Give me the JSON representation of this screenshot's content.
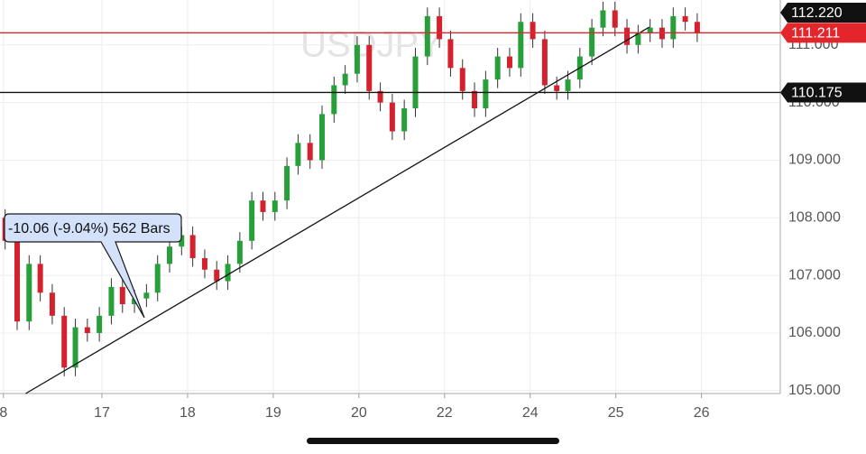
{
  "chart_data": {
    "type": "candlestick",
    "watermark": "USDJPY",
    "annotation": "-10.06 (-9.04%) 562 Bars",
    "xlim": [
      -0.19,
      8.92
    ],
    "xticks": [
      {
        "value": -0.15,
        "label": "8"
      },
      {
        "value": 1,
        "label": "17"
      },
      {
        "value": 2,
        "label": "18"
      },
      {
        "value": 3,
        "label": "19"
      },
      {
        "value": 4,
        "label": "20"
      },
      {
        "value": 5,
        "label": "22"
      },
      {
        "value": 6,
        "label": "24"
      },
      {
        "value": 7,
        "label": "25"
      },
      {
        "value": 8,
        "label": "26"
      }
    ],
    "ylim": [
      104.95,
      111.78
    ],
    "yticks": [
      {
        "value": 105,
        "label": "105.000"
      },
      {
        "value": 106,
        "label": "106.000"
      },
      {
        "value": 107,
        "label": "107.000"
      },
      {
        "value": 108,
        "label": "108.000"
      },
      {
        "value": 109,
        "label": "109.000"
      },
      {
        "value": 110,
        "label": "110.000"
      },
      {
        "value": 111,
        "label": "111.000"
      }
    ],
    "grid": true,
    "up_color": "#27a03a",
    "down_color": "#d4212d",
    "x": [
      -0.13,
      0.01,
      0.15,
      0.28,
      0.42,
      0.56,
      0.69,
      0.83,
      0.97,
      1.11,
      1.24,
      1.38,
      1.52,
      1.65,
      1.79,
      1.93,
      2.06,
      2.2,
      2.34,
      2.47,
      2.61,
      2.75,
      2.88,
      3.02,
      3.16,
      3.29,
      3.43,
      3.57,
      3.71,
      3.84,
      3.98,
      4.12,
      4.25,
      4.39,
      4.53,
      4.66,
      4.8,
      4.94,
      5.07,
      5.21,
      5.35,
      5.48,
      5.62,
      5.76,
      5.89,
      6.03,
      6.17,
      6.31,
      6.44,
      6.58,
      6.72,
      6.85,
      6.99,
      7.13,
      7.26,
      7.4,
      7.54,
      7.67,
      7.81,
      7.95
    ],
    "open": [
      108.0,
      107.6,
      106.2,
      107.2,
      106.7,
      106.3,
      105.4,
      106.1,
      106.0,
      106.3,
      106.8,
      106.5,
      106.6,
      106.7,
      107.2,
      107.5,
      107.7,
      107.3,
      107.1,
      106.9,
      107.2,
      107.6,
      108.3,
      108.1,
      108.3,
      108.9,
      109.3,
      109.0,
      109.8,
      110.3,
      110.5,
      111.0,
      110.2,
      110.0,
      109.5,
      109.9,
      110.8,
      111.5,
      111.1,
      110.6,
      110.2,
      109.9,
      110.4,
      110.8,
      110.6,
      111.4,
      111.1,
      110.3,
      110.2,
      110.4,
      110.8,
      111.3,
      111.6,
      111.3,
      111.0,
      111.2,
      111.3,
      111.1,
      111.5,
      111.4
    ],
    "high": [
      108.15,
      107.75,
      107.35,
      107.35,
      106.85,
      106.45,
      106.25,
      106.25,
      106.45,
      106.95,
      106.95,
      106.75,
      106.85,
      107.35,
      107.65,
      107.85,
      107.85,
      107.45,
      107.25,
      107.35,
      107.75,
      108.45,
      108.45,
      108.45,
      109.05,
      109.45,
      109.45,
      109.95,
      110.45,
      110.65,
      111.15,
      111.15,
      110.35,
      110.15,
      110.05,
      110.95,
      111.65,
      111.65,
      111.25,
      110.75,
      110.35,
      110.55,
      110.95,
      110.95,
      111.55,
      111.55,
      111.25,
      110.45,
      110.55,
      110.95,
      111.45,
      111.75,
      111.75,
      111.45,
      111.35,
      111.45,
      111.45,
      111.65,
      111.65,
      111.55
    ],
    "low": [
      107.45,
      106.05,
      106.05,
      106.55,
      106.15,
      105.25,
      105.25,
      105.85,
      105.85,
      106.15,
      106.35,
      106.35,
      106.45,
      106.55,
      107.05,
      107.35,
      107.15,
      106.95,
      106.75,
      106.75,
      107.05,
      107.45,
      107.95,
      107.95,
      108.15,
      108.75,
      108.85,
      108.85,
      109.65,
      110.15,
      110.35,
      110.05,
      109.85,
      109.35,
      109.35,
      109.75,
      110.65,
      110.95,
      110.45,
      110.05,
      109.75,
      109.75,
      110.25,
      110.45,
      110.45,
      110.95,
      110.15,
      110.05,
      110.05,
      110.25,
      110.65,
      111.15,
      111.15,
      110.85,
      110.85,
      111.05,
      110.95,
      110.95,
      111.25,
      111.05
    ],
    "close": [
      107.6,
      106.2,
      107.2,
      106.7,
      106.3,
      105.4,
      106.1,
      106.0,
      106.3,
      106.8,
      106.5,
      106.6,
      106.7,
      107.2,
      107.5,
      107.7,
      107.3,
      107.1,
      106.9,
      107.2,
      107.6,
      108.3,
      108.1,
      108.3,
      108.9,
      109.3,
      109.0,
      109.8,
      110.3,
      110.5,
      111.0,
      110.2,
      110.0,
      109.5,
      109.9,
      110.8,
      111.5,
      111.1,
      110.6,
      110.2,
      109.9,
      110.4,
      110.8,
      110.6,
      111.4,
      111.1,
      110.3,
      110.2,
      110.4,
      110.8,
      111.3,
      111.6,
      111.3,
      111.0,
      111.2,
      111.3,
      111.1,
      111.5,
      111.4,
      111.2
    ],
    "trendline": {
      "x": [
        0.11,
        7.39
      ],
      "y": [
        104.95,
        111.31
      ]
    },
    "price_lines": [
      {
        "value": 111.211,
        "label": "111.211",
        "color": "#e3262c"
      },
      {
        "value": 110.175,
        "label": "110.175",
        "color": "#111111"
      }
    ],
    "top_badge": {
      "value": 112.22,
      "label": "112.220",
      "color": "#111111"
    }
  }
}
